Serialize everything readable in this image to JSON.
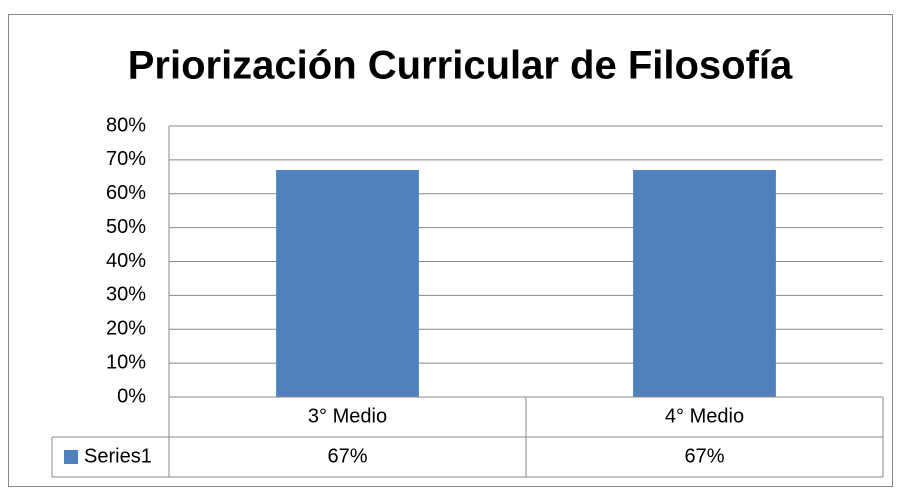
{
  "chart_data": {
    "type": "bar",
    "title": "Priorización Curricular de Filosofía",
    "categories": [
      "3° Medio",
      "4° Medio"
    ],
    "series": [
      {
        "name": "Series1",
        "color": "#4f81bd",
        "values": [
          67,
          67
        ],
        "value_labels": [
          "67%",
          "67%"
        ]
      }
    ],
    "ylim": [
      0,
      80
    ],
    "yticks": [
      {
        "value": 0,
        "label": "0%"
      },
      {
        "value": 10,
        "label": "10%"
      },
      {
        "value": 20,
        "label": "20%"
      },
      {
        "value": 30,
        "label": "30%"
      },
      {
        "value": 40,
        "label": "40%"
      },
      {
        "value": 50,
        "label": "50%"
      },
      {
        "value": 60,
        "label": "60%"
      },
      {
        "value": 70,
        "label": "70%"
      },
      {
        "value": 80,
        "label": "80%"
      }
    ],
    "grid": true,
    "data_table": true
  }
}
